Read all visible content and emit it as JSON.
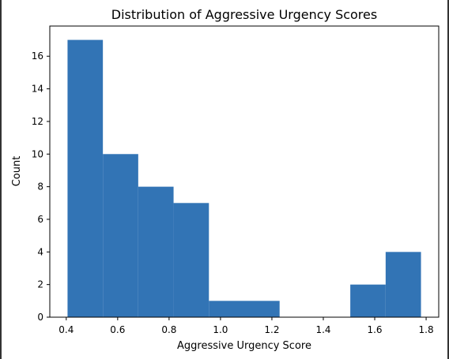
{
  "chart_data": {
    "type": "bar",
    "subtype": "histogram",
    "title": "Distribution of Aggressive Urgency Scores",
    "xlabel": "Aggressive Urgency Score",
    "ylabel": "Count",
    "bin_edges": [
      0.405,
      0.5425,
      0.68,
      0.8175,
      0.955,
      1.0925,
      1.23,
      1.3675,
      1.505,
      1.6425,
      1.78
    ],
    "values": [
      17,
      10,
      8,
      7,
      1,
      1,
      0,
      0,
      2,
      4
    ],
    "xlim": [
      0.336,
      1.849
    ],
    "ylim": [
      0,
      17.85
    ],
    "xticks": [
      0.4,
      0.6,
      0.8,
      1.0,
      1.2,
      1.4,
      1.6,
      1.8
    ],
    "xtick_labels": [
      "0.4",
      "0.6",
      "0.8",
      "1.0",
      "1.2",
      "1.4",
      "1.6",
      "1.8"
    ],
    "yticks": [
      0,
      2,
      4,
      6,
      8,
      10,
      12,
      14,
      16
    ],
    "ytick_labels": [
      "0",
      "2",
      "4",
      "6",
      "8",
      "10",
      "12",
      "14",
      "16"
    ],
    "bar_color": "#3274b5",
    "grid": false,
    "legend": "none"
  }
}
